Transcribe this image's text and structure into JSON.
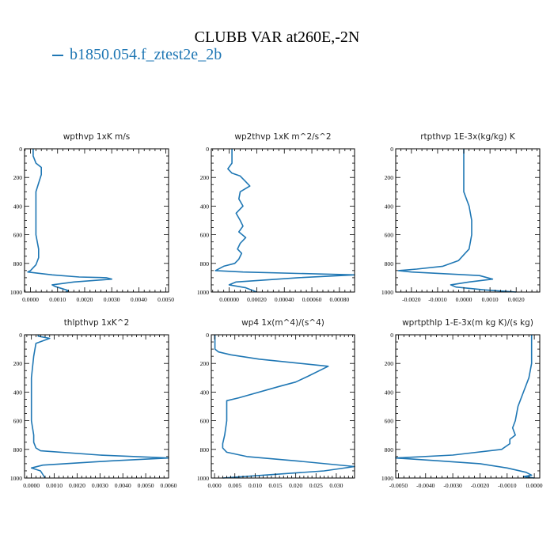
{
  "figure": {
    "title": "CLUBB VAR at260E,-2N",
    "legend_label": "b1850.054.f_ztest2e_2b",
    "line_color": "#1f77b4"
  },
  "chart_data": [
    {
      "type": "line",
      "title": "wpthvp   1xK m/s",
      "xlim": [
        -0.00022,
        0.0051
      ],
      "ylim": [
        0,
        1000
      ],
      "y_inverted": true,
      "xticks": [
        0.0,
        0.001,
        0.002,
        0.003,
        0.004,
        0.005
      ],
      "xtick_labels": [
        "0.0000",
        "0.0010",
        "0.0020",
        "0.0030",
        "0.0040",
        "0.0050"
      ],
      "yticks": [
        0,
        200,
        400,
        600,
        800,
        1000
      ],
      "ytick_labels": [
        "0",
        "200",
        "400",
        "600",
        "800",
        "1000"
      ],
      "series": [
        {
          "x": [
            0.0001,
            0.0001,
            0.0002,
            0.0004,
            0.0004,
            0.0003,
            0.0002,
            0.0002,
            0.0002,
            0.0002,
            0.0003,
            0.0003,
            0.0002,
            0.0,
            -0.0001,
            0.0008,
            0.0018,
            0.0028,
            0.003,
            0.0016,
            0.0008,
            0.0009,
            0.0014,
            0.0013
          ],
          "y": [
            0,
            50,
            100,
            130,
            180,
            240,
            300,
            400,
            500,
            600,
            700,
            760,
            810,
            850,
            860,
            880,
            895,
            900,
            910,
            930,
            950,
            960,
            990,
            1000
          ]
        }
      ]
    },
    {
      "type": "line",
      "title": "wp2thvp   1xK m^2/s^2",
      "xlim": [
        -0.00013,
        0.00091
      ],
      "ylim": [
        0,
        1000
      ],
      "y_inverted": true,
      "xticks": [
        0.0,
        0.0002,
        0.0004,
        0.0006,
        0.0008
      ],
      "xtick_labels": [
        "0.00000",
        "0.00020",
        "0.00040",
        "0.00060",
        "0.00080"
      ],
      "yticks": [
        0,
        200,
        400,
        600,
        800,
        1000
      ],
      "ytick_labels": [
        "0",
        "200",
        "400",
        "600",
        "800",
        "1000"
      ],
      "series": [
        {
          "x": [
            2e-05,
            2e-05,
            2e-05,
            -1e-05,
            2e-05,
            8e-05,
            0.00012,
            0.00015,
            8e-05,
            7e-05,
            0.0001,
            5e-05,
            8e-05,
            0.0001,
            7e-05,
            0.00012,
            8e-05,
            6e-05,
            9e-05,
            7e-05,
            4e-05,
            -4e-05,
            -0.0001,
            0.0001,
            0.0005,
            0.00091,
            0.0005,
            5e-05,
            0.0,
            0.00012,
            0.0002
          ],
          "y": [
            0,
            60,
            100,
            140,
            170,
            190,
            230,
            260,
            300,
            350,
            400,
            450,
            500,
            540,
            580,
            620,
            660,
            700,
            730,
            770,
            800,
            820,
            850,
            860,
            870,
            880,
            900,
            930,
            950,
            970,
            1000
          ]
        }
      ]
    },
    {
      "type": "line",
      "title": "rtpthvp   1E-3x(kg/kg) K",
      "xlim": [
        -0.0026,
        0.0029
      ],
      "ylim": [
        0,
        1000
      ],
      "y_inverted": true,
      "xticks": [
        -0.002,
        -0.001,
        0.0,
        0.001,
        0.002
      ],
      "xtick_labels": [
        "-0.0020",
        "-0.0010",
        "0.0000",
        "0.0010",
        "0.0020"
      ],
      "yticks": [
        0,
        200,
        400,
        600,
        800,
        1000
      ],
      "ytick_labels": [
        "0",
        "200",
        "400",
        "600",
        "800",
        "1000"
      ],
      "series": [
        {
          "x": [
            0.0,
            0.0,
            0.0,
            0.0,
            0.0002,
            0.0003,
            0.0003,
            0.0002,
            0.0,
            -0.0002,
            -0.0008,
            -0.0018,
            -0.0025,
            -0.002,
            0.0006,
            0.0011,
            0.0002,
            -0.0005,
            -0.0003,
            0.0008,
            0.002
          ],
          "y": [
            0,
            100,
            200,
            300,
            400,
            500,
            600,
            700,
            740,
            780,
            820,
            840,
            850,
            860,
            885,
            910,
            930,
            950,
            965,
            985,
            1000
          ]
        }
      ]
    },
    {
      "type": "line",
      "title": "thlpthvp   1xK^2",
      "xlim": [
        -0.0003,
        0.006
      ],
      "ylim": [
        0,
        1000
      ],
      "y_inverted": true,
      "xticks": [
        0.0,
        0.001,
        0.002,
        0.003,
        0.004,
        0.005,
        0.006
      ],
      "xtick_labels": [
        "0.0000",
        "0.0010",
        "0.0020",
        "0.0030",
        "0.0040",
        "0.0050",
        "0.0060"
      ],
      "yticks": [
        0,
        200,
        400,
        600,
        800,
        1000
      ],
      "ytick_labels": [
        "0",
        "200",
        "400",
        "600",
        "800",
        "1000"
      ],
      "series": [
        {
          "x": [
            0.0003,
            0.0003,
            0.0008,
            0.0002,
            0.0001,
            0.0,
            0.0,
            0.0,
            0.0,
            0.0001,
            0.0001,
            0.0002,
            0.0004,
            0.003,
            0.006,
            0.0035,
            0.0005,
            0.0,
            0.0004,
            0.0006
          ],
          "y": [
            0,
            10,
            25,
            60,
            150,
            300,
            400,
            500,
            600,
            700,
            750,
            790,
            810,
            840,
            860,
            880,
            910,
            930,
            950,
            1000
          ]
        }
      ]
    },
    {
      "type": "line",
      "title": "wp4   1x(m^4)/(s^4)",
      "xlim": [
        -0.0008,
        0.0345
      ],
      "ylim": [
        0,
        1000
      ],
      "y_inverted": true,
      "xticks": [
        0.0,
        0.005,
        0.01,
        0.015,
        0.02,
        0.025,
        0.03
      ],
      "xtick_labels": [
        "0.000",
        "0.005",
        "0.010",
        "0.015",
        "0.020",
        "0.025",
        "0.030"
      ],
      "yticks": [
        0,
        200,
        400,
        600,
        800,
        1000
      ],
      "ytick_labels": [
        "0",
        "200",
        "400",
        "600",
        "800",
        "1000"
      ],
      "series": [
        {
          "x": [
            0.0001,
            0.0001,
            0.0001,
            0.001,
            0.004,
            0.011,
            0.028,
            0.023,
            0.02,
            0.016,
            0.006,
            0.003,
            0.003,
            0.003,
            0.0025,
            0.002,
            0.002,
            0.003,
            0.008,
            0.02,
            0.0345,
            0.027,
            0.012,
            0.002
          ],
          "y": [
            0,
            50,
            100,
            120,
            140,
            170,
            220,
            290,
            330,
            360,
            440,
            460,
            500,
            600,
            700,
            760,
            790,
            820,
            850,
            880,
            920,
            950,
            980,
            1000
          ]
        }
      ]
    },
    {
      "type": "line",
      "title": "wprtpthlp   1-E-3x(m kg K)/(s kg)",
      "xlim": [
        -0.0051,
        0.0002
      ],
      "ylim": [
        0,
        1000
      ],
      "y_inverted": true,
      "xticks": [
        -0.005,
        -0.004,
        -0.003,
        -0.002,
        -0.001,
        0.0
      ],
      "xtick_labels": [
        "-0.0050",
        "-0.0040",
        "-0.0030",
        "-0.0020",
        "-0.0010",
        "0.0000"
      ],
      "yticks": [
        0,
        200,
        400,
        600,
        800,
        1000
      ],
      "ytick_labels": [
        "0",
        "200",
        "400",
        "600",
        "800",
        "1000"
      ],
      "series": [
        {
          "x": [
            -0.0001,
            -0.0001,
            -0.0001,
            -0.0002,
            -0.0004,
            -0.0006,
            -0.0007,
            -0.0008,
            -0.0007,
            -0.0009,
            -0.0009,
            -0.0012,
            -0.003,
            -0.0051,
            -0.0035,
            -0.002,
            -0.001,
            -0.0003,
            -0.0001,
            -0.0004,
            0.0
          ],
          "y": [
            0,
            100,
            200,
            300,
            400,
            500,
            600,
            650,
            700,
            730,
            760,
            800,
            840,
            860,
            880,
            900,
            930,
            960,
            980,
            990,
            1000
          ]
        }
      ]
    }
  ]
}
